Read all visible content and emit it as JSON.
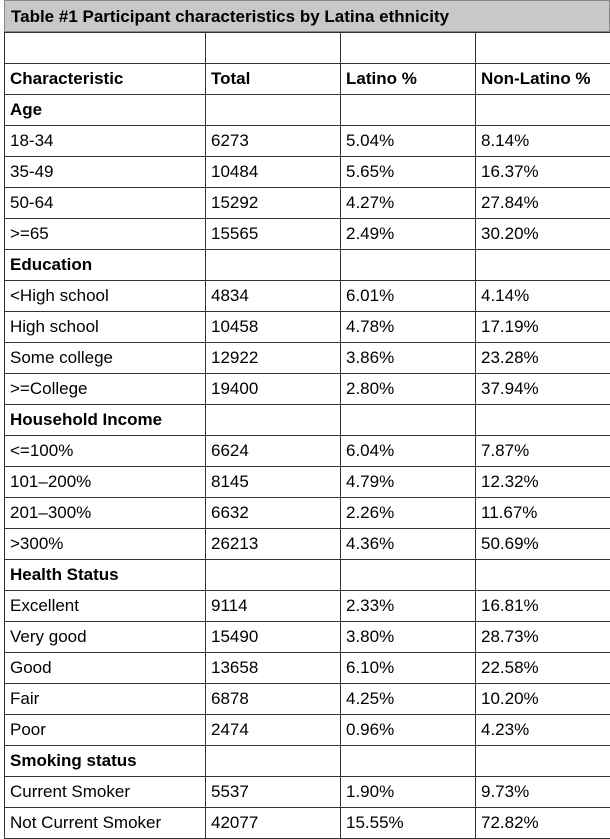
{
  "title": "Table #1 Participant characteristics by Latina ethnicity",
  "header": [
    "Characteristic",
    "Total",
    "Latino %",
    "Non-Latino %"
  ],
  "rows": [
    {
      "section": true,
      "cells": [
        "Age",
        "",
        "",
        ""
      ]
    },
    {
      "section": false,
      "cells": [
        "18-34",
        "6273",
        "5.04%",
        "8.14%"
      ]
    },
    {
      "section": false,
      "cells": [
        "35-49",
        "10484",
        "5.65%",
        "16.37%"
      ]
    },
    {
      "section": false,
      "cells": [
        "50-64",
        "15292",
        "4.27%",
        "27.84%"
      ]
    },
    {
      "section": false,
      "cells": [
        ">=65",
        "15565",
        "2.49%",
        "30.20%"
      ]
    },
    {
      "section": true,
      "cells": [
        "Education",
        "",
        "",
        ""
      ]
    },
    {
      "section": false,
      "cells": [
        "<High school",
        "4834",
        "6.01%",
        "4.14%"
      ]
    },
    {
      "section": false,
      "cells": [
        "High school",
        "10458",
        "4.78%",
        "17.19%"
      ]
    },
    {
      "section": false,
      "cells": [
        "Some college",
        "12922",
        "3.86%",
        "23.28%"
      ]
    },
    {
      "section": false,
      "cells": [
        ">=College",
        "19400",
        "2.80%",
        "37.94%"
      ]
    },
    {
      "section": true,
      "cells": [
        "Household Income",
        "",
        "",
        ""
      ]
    },
    {
      "section": false,
      "cells": [
        "<=100%",
        "6624",
        "6.04%",
        "7.87%"
      ]
    },
    {
      "section": false,
      "cells": [
        "101–200%",
        "8145",
        "4.79%",
        "12.32%"
      ]
    },
    {
      "section": false,
      "cells": [
        "201–300%",
        "6632",
        "2.26%",
        "11.67%"
      ]
    },
    {
      "section": false,
      "cells": [
        ">300%",
        "26213",
        "4.36%",
        "50.69%"
      ]
    },
    {
      "section": true,
      "cells": [
        "Health Status",
        "",
        "",
        ""
      ]
    },
    {
      "section": false,
      "cells": [
        "Excellent",
        "9114",
        "2.33%",
        "16.81%"
      ]
    },
    {
      "section": false,
      "cells": [
        "Very good",
        "15490",
        "3.80%",
        "28.73%"
      ]
    },
    {
      "section": false,
      "cells": [
        "Good",
        "13658",
        "6.10%",
        "22.58%"
      ]
    },
    {
      "section": false,
      "cells": [
        "Fair",
        "6878",
        "4.25%",
        "10.20%"
      ]
    },
    {
      "section": false,
      "cells": [
        "Poor",
        "2474",
        "0.96%",
        "4.23%"
      ]
    },
    {
      "section": true,
      "cells": [
        "Smoking status",
        "",
        "",
        ""
      ]
    },
    {
      "section": false,
      "cells": [
        "Current Smoker",
        "5537",
        "1.90%",
        "9.73%"
      ]
    },
    {
      "section": false,
      "cells": [
        "Not Current Smoker",
        "42077",
        "15.55%",
        "72.82%"
      ]
    }
  ]
}
